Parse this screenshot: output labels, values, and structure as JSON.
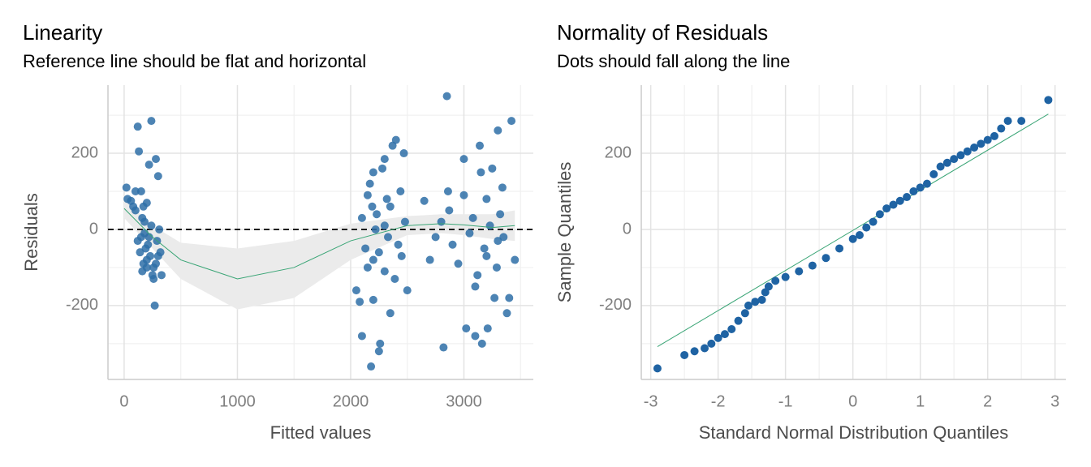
{
  "chart_data": [
    {
      "type": "scatter",
      "title": "Linearity",
      "subtitle": "Reference line should be flat and horizontal",
      "xlabel": "Fitted values",
      "ylabel": "Residuals",
      "xlim": [
        -143,
        3613
      ],
      "ylim": [
        -394,
        379
      ],
      "xticks": [
        0,
        1000,
        2000,
        3000
      ],
      "yticks": [
        -200,
        0,
        200
      ],
      "x_minor_ticks": [
        500,
        1500,
        2500,
        3500
      ],
      "y_minor_ticks": [
        -300,
        -100,
        100,
        300
      ],
      "grid": true,
      "color": "#2e6fa7",
      "x": [
        20,
        30,
        60,
        80,
        100,
        120,
        130,
        150,
        160,
        170,
        180,
        190,
        200,
        210,
        220,
        240,
        250,
        260,
        270,
        280,
        290,
        300,
        310,
        320,
        330,
        150,
        170,
        200,
        230,
        260,
        120,
        140,
        180,
        220,
        240,
        100,
        280,
        200,
        160,
        300,
        2050,
        2080,
        2100,
        2100,
        2130,
        2150,
        2170,
        2180,
        2190,
        2200,
        2200,
        2220,
        2230,
        2250,
        2260,
        2280,
        2300,
        2300,
        2320,
        2330,
        2350,
        2370,
        2390,
        2400,
        2420,
        2440,
        2450,
        2470,
        2480,
        2500,
        2150,
        2250,
        2350,
        2200,
        2300,
        2650,
        2700,
        2750,
        2800,
        2820,
        2850,
        2860,
        2870,
        2900,
        2950,
        3000,
        3020,
        3050,
        3080,
        3100,
        3120,
        3140,
        3150,
        3160,
        3180,
        3200,
        3210,
        3230,
        3250,
        3270,
        3290,
        3300,
        3320,
        3340,
        3350,
        3380,
        3400,
        3420,
        3450,
        3000,
        3100,
        3200,
        3300
      ],
      "values": [
        110,
        80,
        75,
        60,
        50,
        270,
        205,
        100,
        30,
        60,
        -10,
        -50,
        -80,
        -40,
        170,
        285,
        -120,
        -130,
        -200,
        185,
        -30,
        140,
        0,
        -60,
        -120,
        -20,
        -90,
        -100,
        -70,
        -100,
        -30,
        -60,
        20,
        -20,
        10,
        100,
        -90,
        70,
        -110,
        -70,
        -160,
        -190,
        -280,
        30,
        -50,
        90,
        120,
        -360,
        60,
        -80,
        -185,
        0,
        40,
        -320,
        -300,
        160,
        185,
        -110,
        80,
        -20,
        60,
        220,
        -130,
        235,
        -40,
        100,
        -70,
        200,
        20,
        -160,
        -100,
        -60,
        -220,
        150,
        10,
        75,
        -80,
        -20,
        20,
        -310,
        350,
        100,
        50,
        -40,
        -90,
        185,
        -260,
        -10,
        30,
        -280,
        -120,
        220,
        150,
        -300,
        -50,
        80,
        -260,
        10,
        160,
        -180,
        -100,
        260,
        40,
        110,
        -20,
        -220,
        -180,
        285,
        -80,
        90,
        -150,
        -70,
        -30
      ],
      "reference_line": {
        "y": 0,
        "dashed": true,
        "color": "#000000"
      },
      "smooth": {
        "color": "#3aa576",
        "band_color": "#ebebeb",
        "x": [
          0,
          250,
          500,
          1000,
          1500,
          2000,
          2500,
          2800,
          3000,
          3250,
          3450
        ],
        "y": [
          55,
          -20,
          -80,
          -130,
          -100,
          -30,
          10,
          15,
          12,
          5,
          10
        ],
        "lower": [
          30,
          -50,
          -130,
          -210,
          -180,
          -80,
          -15,
          -10,
          -15,
          -25,
          -30
        ],
        "upper": [
          80,
          10,
          -35,
          -50,
          -30,
          15,
          35,
          40,
          40,
          40,
          50
        ]
      }
    },
    {
      "type": "qq",
      "title": "Normality of Residuals",
      "subtitle": "Dots should fall along the line",
      "xlabel": "Standard Normal Distribution Quantiles",
      "ylabel": "Sample Quantiles",
      "xlim": [
        -3.14,
        3.16
      ],
      "ylim": [
        -394,
        379
      ],
      "xticks": [
        -3,
        -2,
        -1,
        0,
        1,
        2,
        3
      ],
      "yticks": [
        -200,
        0,
        200
      ],
      "x_minor_ticks": [
        -2.5,
        -1.5,
        -0.5,
        0.5,
        1.5,
        2.5
      ],
      "y_minor_ticks": [
        -300,
        -100,
        100,
        300
      ],
      "grid": true,
      "color": "#1f63a3",
      "x": [
        -2.9,
        -2.5,
        -2.35,
        -2.2,
        -2.1,
        -2.0,
        -1.9,
        -1.8,
        -1.7,
        -1.6,
        -1.55,
        -1.45,
        -1.35,
        -1.3,
        -1.25,
        -1.15,
        -1.0,
        -0.8,
        -0.6,
        -0.4,
        -0.2,
        0,
        0.1,
        0.2,
        0.3,
        0.4,
        0.5,
        0.6,
        0.7,
        0.8,
        0.9,
        1.0,
        1.1,
        1.2,
        1.3,
        1.4,
        1.5,
        1.6,
        1.7,
        1.8,
        1.9,
        2.0,
        2.1,
        2.2,
        2.3,
        2.5,
        2.9
      ],
      "values": [
        -365,
        -330,
        -320,
        -312,
        -300,
        -285,
        -275,
        -262,
        -240,
        -220,
        -200,
        -190,
        -185,
        -165,
        -150,
        -135,
        -125,
        -110,
        -95,
        -75,
        -50,
        -25,
        -15,
        5,
        20,
        40,
        55,
        65,
        75,
        85,
        100,
        110,
        120,
        145,
        165,
        175,
        185,
        195,
        205,
        215,
        225,
        235,
        245,
        265,
        285,
        285,
        340
      ],
      "qq_line": {
        "color": "#3aa576",
        "x": [
          -2.9,
          2.9
        ],
        "y": [
          -308,
          303
        ]
      }
    }
  ]
}
